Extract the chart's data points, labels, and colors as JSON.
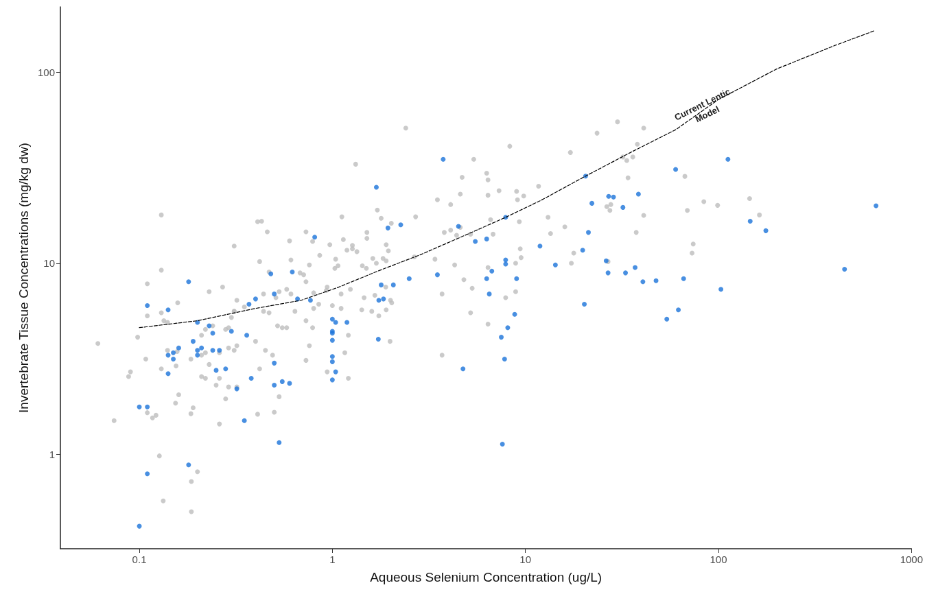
{
  "chart_data": {
    "type": "scatter",
    "xlabel": "Aqueous Selenium Concentration (ug/L)",
    "ylabel": "Invertebrate Tissue Concentrations (mg/kg dw)",
    "log": "xy",
    "xlim": [
      0.039,
      1000
    ],
    "ylim": [
      0.32,
      220
    ],
    "xticks": [
      0.1,
      1,
      10,
      100,
      1000
    ],
    "yticks": [
      1,
      10,
      100
    ],
    "marker": "circle",
    "annotations": [
      {
        "text": "Current Lentic Model",
        "x": 85,
        "y": 64
      }
    ],
    "series": [
      {
        "color": "#bdbdbd",
        "x": [
          0.13,
          0.41,
          0.43,
          0.46,
          0.31,
          0.6,
          0.73,
          0.79,
          0.97,
          0.86,
          0.61,
          0.42,
          0.47,
          0.68,
          0.71,
          0.76,
          0.73,
          1.04,
          1.03,
          0.13,
          0.11,
          0.23,
          0.27,
          0.158,
          0.32,
          0.44,
          0.53,
          0.51,
          0.58,
          0.61,
          0.8,
          0.94,
          0.85,
          0.8,
          1.0,
          0.13,
          0.11,
          0.134,
          0.14,
          0.35,
          0.31,
          0.31,
          0.3,
          0.44,
          0.47,
          0.64,
          0.73,
          0.79,
          0.52,
          0.55,
          0.58,
          0.24,
          0.22,
          0.29,
          0.28,
          0.21,
          0.098,
          0.061,
          0.14,
          0.157,
          0.22,
          0.21,
          0.185,
          0.108,
          0.29,
          0.31,
          0.32,
          0.26,
          0.4,
          0.45,
          0.49,
          0.76,
          0.73,
          0.155,
          0.13,
          0.23,
          0.42,
          0.09,
          0.088,
          0.21,
          0.22,
          0.26,
          0.25,
          0.29,
          0.32,
          0.94,
          0.16,
          0.154,
          0.28,
          0.53,
          0.19,
          0.185,
          0.11,
          0.117,
          0.122,
          0.074,
          0.41,
          0.5,
          0.26,
          0.127,
          0.2,
          0.186,
          0.133,
          0.186,
          2.4,
          1.32,
          8.3,
          5.4,
          23.5,
          17.1,
          4.7,
          6.3,
          6.4,
          3.5,
          4.6,
          4.1,
          6.4,
          7.3,
          9.0,
          9.1,
          9.8,
          11.7,
          1.12,
          1.71,
          1.79,
          2.02,
          2.7,
          6.6,
          9.3,
          3.8,
          4.1,
          4.4,
          4.6,
          5.2,
          6.8,
          13.1,
          13.5,
          16.0,
          17.8,
          17.3,
          1.14,
          1.19,
          1.27,
          1.27,
          1.34,
          1.51,
          1.51,
          1.07,
          1.62,
          1.69,
          1.43,
          1.5,
          1.83,
          1.9,
          1.9,
          1.95,
          2.66,
          3.4,
          4.3,
          4.8,
          5.3,
          6.4,
          8.9,
          9.5,
          9.4,
          8.9,
          7.9,
          5.2,
          6.4,
          3.7,
          3.7,
          0.93,
          1.11,
          1.11,
          1.24,
          1.46,
          1.66,
          1.42,
          1.6,
          1.74,
          1.9,
          2.0,
          2.03,
          1.89,
          1.21,
          1.16,
          1.21,
          1.99,
          30,
          41,
          38,
          32,
          33.5,
          36,
          34,
          67,
          26.4,
          27.7,
          27.4,
          41,
          37.5,
          84,
          99,
          145,
          163,
          69,
          74,
          73,
          26.8
        ],
        "values": [
          17.9,
          16.5,
          16.6,
          14.6,
          12.3,
          13.1,
          14.6,
          13.0,
          12.5,
          11.0,
          10.4,
          10.2,
          9.0,
          8.9,
          8.7,
          9.8,
          8.0,
          10.5,
          9.4,
          9.2,
          7.8,
          7.1,
          7.5,
          6.2,
          6.4,
          6.9,
          7.1,
          6.6,
          7.3,
          6.9,
          7.0,
          7.5,
          6.1,
          5.8,
          6.0,
          5.5,
          5.3,
          5.0,
          4.9,
          5.9,
          5.6,
          5.6,
          5.2,
          5.6,
          5.5,
          5.6,
          5.0,
          4.6,
          4.7,
          4.6,
          4.6,
          4.7,
          4.5,
          4.6,
          4.5,
          4.2,
          4.1,
          3.8,
          3.5,
          3.45,
          3.4,
          3.3,
          3.15,
          3.15,
          3.6,
          3.5,
          3.7,
          3.4,
          3.9,
          3.5,
          3.3,
          3.7,
          3.1,
          2.9,
          2.8,
          2.95,
          2.8,
          2.7,
          2.55,
          2.55,
          2.5,
          2.5,
          2.3,
          2.25,
          2.25,
          2.7,
          2.05,
          1.85,
          1.95,
          2.0,
          1.75,
          1.63,
          1.65,
          1.55,
          1.6,
          1.5,
          1.62,
          1.66,
          1.44,
          0.98,
          0.81,
          0.72,
          0.57,
          0.5,
          51,
          33,
          41,
          35,
          48,
          38,
          28.2,
          29.6,
          27.3,
          21.5,
          23,
          20.3,
          22.7,
          24,
          23.8,
          21.5,
          22.5,
          25.3,
          17.5,
          19,
          17.2,
          16.2,
          17.5,
          16.9,
          16.5,
          14.5,
          14.9,
          14.0,
          15.4,
          14.2,
          14.2,
          17.4,
          14.3,
          15.5,
          11.3,
          10.0,
          13.3,
          11.7,
          12.4,
          11.9,
          11.5,
          14.5,
          13.5,
          9.7,
          10.6,
          10.0,
          9.7,
          9.4,
          10.6,
          10.3,
          12.5,
          11.6,
          10.8,
          10.5,
          9.8,
          8.2,
          7.4,
          9.5,
          10.0,
          10.7,
          11.9,
          7.1,
          6.6,
          5.5,
          4.8,
          6.9,
          3.3,
          7.2,
          5.8,
          6.9,
          7.3,
          6.6,
          6.8,
          5.7,
          5.6,
          5.3,
          5.7,
          6.4,
          6.2,
          7.5,
          4.2,
          3.4,
          2.5,
          3.9,
          55,
          51,
          42,
          36,
          34.5,
          36,
          28,
          28.5,
          19.8,
          20.3,
          18.9,
          17.8,
          14.5,
          21,
          20.1,
          21.8,
          17.9,
          18.9,
          12.6,
          11.3,
          10.2
        ]
      },
      {
        "color": "#1a73d9",
        "x": [
          0.1,
          0.1,
          0.11,
          0.11,
          0.11,
          0.141,
          0.141,
          0.141,
          0.15,
          0.15,
          0.16,
          0.18,
          0.18,
          0.19,
          0.2,
          0.2,
          0.21,
          0.2,
          0.23,
          0.24,
          0.24,
          0.26,
          0.25,
          0.28,
          0.3,
          0.32,
          0.35,
          0.36,
          0.37,
          0.38,
          0.4,
          0.48,
          0.5,
          0.5,
          0.5,
          0.53,
          0.55,
          0.6,
          0.62,
          0.66,
          0.77,
          0.81,
          1.0,
          1.04,
          1.0,
          1.0,
          1.0,
          1.0,
          1.0,
          1.04,
          1.0,
          1.19,
          1.73,
          1.79,
          2.07,
          1.74,
          1.84,
          1.69,
          1.94,
          2.26,
          2.5,
          3.5,
          3.75,
          4.5,
          4.75,
          5.5,
          6.3,
          6.3,
          6.5,
          6.7,
          7.9,
          7.9,
          7.9,
          7.5,
          8.1,
          8.8,
          9.0,
          7.8,
          7.6,
          11.9,
          14.3,
          19.8,
          20.2,
          20.5,
          21.2,
          22.1,
          27,
          28.6,
          38.5,
          32,
          26.2,
          26.8,
          33,
          37,
          40.6,
          47.5,
          66,
          54,
          62,
          60,
          112,
          146,
          176,
          450,
          655,
          103
        ],
        "values": [
          0.42,
          1.77,
          1.77,
          0.79,
          6.0,
          5.7,
          3.3,
          2.64,
          3.4,
          3.15,
          3.6,
          8.0,
          0.88,
          3.9,
          3.5,
          4.9,
          3.6,
          3.3,
          4.7,
          4.3,
          3.5,
          3.5,
          2.75,
          2.8,
          4.4,
          2.2,
          1.5,
          4.2,
          6.1,
          2.5,
          6.5,
          8.8,
          6.9,
          3.0,
          2.3,
          1.15,
          2.4,
          2.35,
          9.0,
          6.5,
          6.4,
          13.7,
          5.1,
          4.9,
          4.4,
          4.3,
          3.95,
          3.25,
          3.05,
          2.7,
          2.45,
          4.9,
          4.0,
          7.7,
          7.7,
          6.4,
          6.5,
          25,
          15.3,
          15.9,
          8.3,
          8.7,
          35,
          15.6,
          2.8,
          13.0,
          13.4,
          8.3,
          6.9,
          9.1,
          17.4,
          10.4,
          9.9,
          4.1,
          4.6,
          5.4,
          8.3,
          3.15,
          1.13,
          12.3,
          9.8,
          11.7,
          6.1,
          28.6,
          14.5,
          20.6,
          22.4,
          22.2,
          23,
          19.6,
          10.3,
          8.9,
          8.9,
          9.5,
          8.0,
          8.1,
          8.3,
          5.1,
          5.7,
          31,
          35,
          16.6,
          14.8,
          9.3,
          20,
          7.3
        ]
      },
      {
        "type": "line",
        "color": "#000000",
        "line_style": "dashed",
        "marker": "none",
        "x": [
          0.1,
          0.2,
          0.4,
          0.69,
          1.08,
          1.72,
          2.87,
          5.1,
          7.9,
          12.1,
          20.5,
          35,
          60,
          100,
          200,
          400,
          643
        ],
        "values": [
          4.6,
          5.0,
          5.8,
          6.4,
          7.5,
          9.1,
          11.1,
          14.3,
          17.4,
          21.4,
          28.6,
          38,
          50,
          72,
          104,
          138,
          165
        ]
      }
    ]
  }
}
